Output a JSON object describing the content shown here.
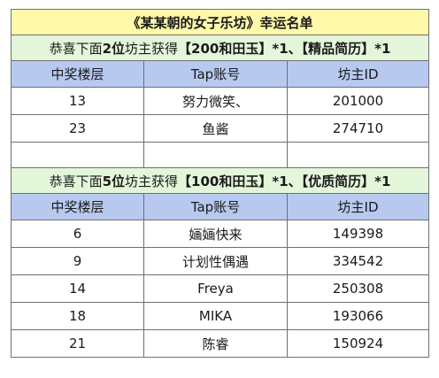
{
  "title": "《某某朝的女子乐坊》幸运名单",
  "section1": {
    "p1": "恭喜下面",
    "count": "2位",
    "p2": "坊主获得",
    "prize1": "【200和田玉】",
    "p3": "*1、",
    "prize2": "【精品简历】",
    "p4": "*1"
  },
  "section2": {
    "p1": "恭喜下面",
    "count": "5位",
    "p2": "坊主获得",
    "prize1": "【100和田玉】",
    "p3": "*1、",
    "prize2": "【优质简历】",
    "p4": "*1"
  },
  "columns": [
    "中奖楼层",
    "Tap账号",
    "坊主ID"
  ],
  "table1_rows": [
    [
      "13",
      "努力微笑、",
      "201000"
    ],
    [
      "23",
      "鱼酱",
      "274710"
    ]
  ],
  "table2_rows": [
    [
      "6",
      "婳婳快来",
      "149398"
    ],
    [
      "9",
      "计划性偶遇",
      "334542"
    ],
    [
      "14",
      "Freya",
      "250308"
    ],
    [
      "18",
      "MIKA",
      "193066"
    ],
    [
      "21",
      "陈睿",
      "150924"
    ]
  ],
  "colors": {
    "title_bg": "#fff9a9",
    "section_bg": "#e3f6da",
    "header_bg": "#b8c9f0",
    "border": "#6f6f6f"
  }
}
